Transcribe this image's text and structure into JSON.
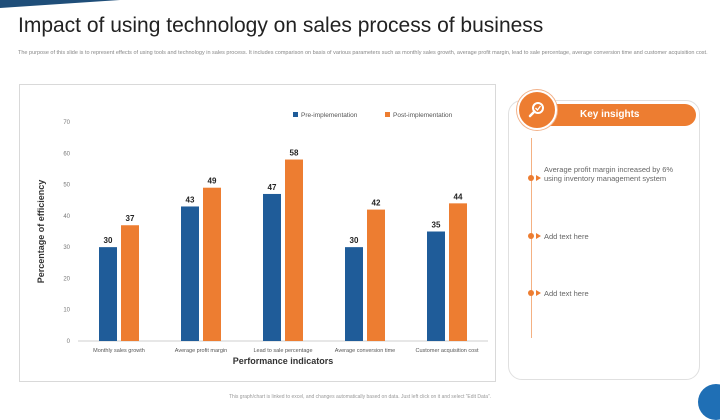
{
  "slide": {
    "title": "Impact of using technology on sales process of business",
    "subtitle": "The purpose of this slide is to represent effects of using tools and technology in sales process. It includes comparison on basis of various parameters such as monthly sales growth, average profit margin, lead to sale percentage, average conversion time and customer acquisition cost.",
    "footer": "This graph/chart is linked to excel, and changes automatically based on data. Just left click on it and select “Edit Data”."
  },
  "insights": {
    "header": "Key insights",
    "icon": "search-magnifier-icon",
    "items": [
      "Average profit margin increased by 6% using inventory management system",
      "Add text here",
      "Add text here"
    ]
  },
  "colors": {
    "pre": "#1f5c99",
    "post": "#ed7d31",
    "accent": "#ed7d31"
  },
  "chart_data": {
    "type": "bar",
    "categories": [
      "Monthly sales growth",
      "Average profit margin",
      "Lead to sale percentage",
      "Average conversion time",
      "Customer acquisition cost"
    ],
    "series": [
      {
        "name": "Pre-implementation",
        "values": [
          30,
          43,
          47,
          30,
          35
        ]
      },
      {
        "name": "Post-implementation",
        "values": [
          37,
          49,
          58,
          42,
          44
        ]
      }
    ],
    "xlabel": "Performance indicators",
    "ylabel": "Percentage of efficiency",
    "ylim": [
      0,
      70
    ],
    "yticks": [
      0,
      10,
      20,
      30,
      40,
      50,
      60,
      70
    ],
    "legend": "top-right",
    "grid": false,
    "data_labels": true
  }
}
